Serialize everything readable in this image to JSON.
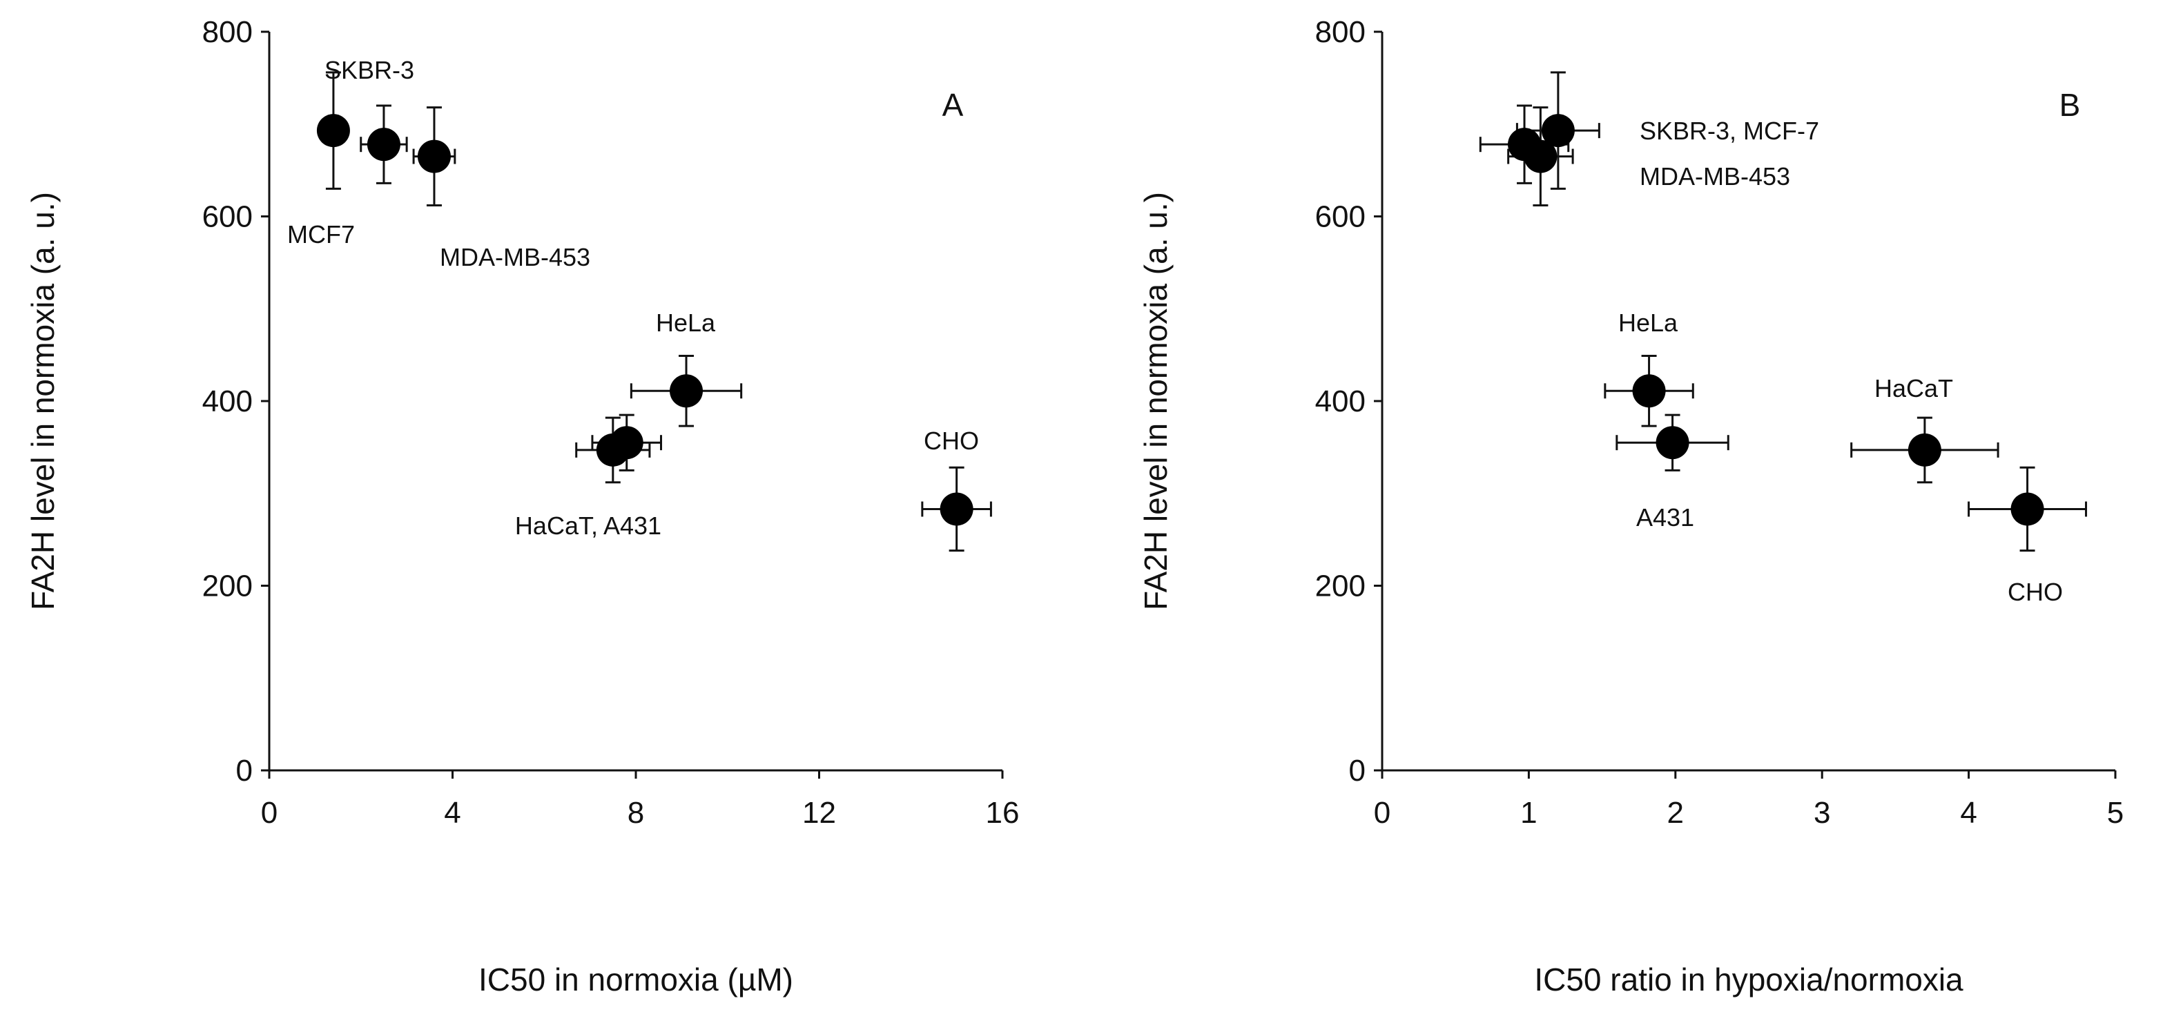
{
  "chart_data": [
    {
      "type": "scatter",
      "panel": "A",
      "xlabel": "IC50 in normoxia (µM)",
      "ylabel": "FA2H level in normoxia (a. u.)",
      "xlim": [
        0,
        16
      ],
      "ylim": [
        0,
        800
      ],
      "xticks": [
        0,
        4,
        8,
        12,
        16
      ],
      "yticks": [
        0,
        200,
        400,
        600,
        800
      ],
      "points": [
        {
          "name": "SKBR-3",
          "x": 1.4,
          "y": 693,
          "xerr": 0.25,
          "yerr": 63
        },
        {
          "name": "MCF7",
          "x": 2.5,
          "y": 678,
          "xerr": 0.5,
          "yerr": 42
        },
        {
          "name": "MDA-MB-453",
          "x": 3.6,
          "y": 665,
          "xerr": 0.45,
          "yerr": 53
        },
        {
          "name": "HaCaT",
          "x": 7.5,
          "y": 347,
          "xerr": 0.8,
          "yerr": 35
        },
        {
          "name": "A431",
          "x": 7.8,
          "y": 355,
          "xerr": 0.75,
          "yerr": 30
        },
        {
          "name": "HeLa",
          "x": 9.1,
          "y": 411,
          "xerr": 1.2,
          "yerr": 38
        },
        {
          "name": "CHO",
          "x": 15.0,
          "y": 283,
          "xerr": 0.75,
          "yerr": 45
        }
      ],
      "annotations": [
        "SKBR-3",
        "MCF7",
        "MDA-MB-453",
        "HeLa",
        "HaCaT, A431",
        "CHO"
      ]
    },
    {
      "type": "scatter",
      "panel": "B",
      "xlabel": "IC50 ratio in hypoxia/normoxia",
      "ylabel": "FA2H level in normoxia (a. u.)",
      "xlim": [
        0,
        5
      ],
      "ylim": [
        0,
        800
      ],
      "xticks": [
        0,
        1,
        2,
        3,
        4,
        5
      ],
      "yticks": [
        0,
        200,
        400,
        600,
        800
      ],
      "points": [
        {
          "name": "MCF-7",
          "x": 0.97,
          "y": 678,
          "xerr": 0.3,
          "yerr": 42
        },
        {
          "name": "MDA-MB-453",
          "x": 1.08,
          "y": 665,
          "xerr": 0.22,
          "yerr": 53
        },
        {
          "name": "SKBR-3",
          "x": 1.2,
          "y": 693,
          "xerr": 0.28,
          "yerr": 63
        },
        {
          "name": "HeLa",
          "x": 1.82,
          "y": 411,
          "xerr": 0.3,
          "yerr": 38
        },
        {
          "name": "A431",
          "x": 1.98,
          "y": 355,
          "xerr": 0.38,
          "yerr": 30
        },
        {
          "name": "HaCaT",
          "x": 3.7,
          "y": 347,
          "xerr": 0.5,
          "yerr": 35
        },
        {
          "name": "CHO",
          "x": 4.4,
          "y": 283,
          "xerr": 0.4,
          "yerr": 45
        }
      ],
      "annotations": [
        "SKBR-3, MCF-7",
        "MDA-MB-453",
        "HeLa",
        "A431",
        "HaCaT",
        "CHO"
      ]
    }
  ]
}
